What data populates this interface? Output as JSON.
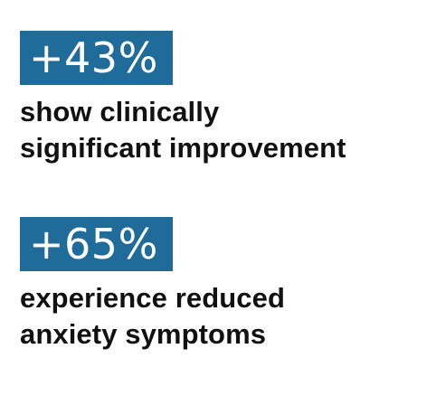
{
  "stats": [
    {
      "value": "+43%",
      "caption_lines": [
        "show clinically",
        "significant improvement"
      ],
      "badge_color": "#1f6b99"
    },
    {
      "value": "+65%",
      "caption_lines": [
        "experience reduced",
        "anxiety symptoms"
      ],
      "badge_color": "#1f6b99"
    }
  ]
}
